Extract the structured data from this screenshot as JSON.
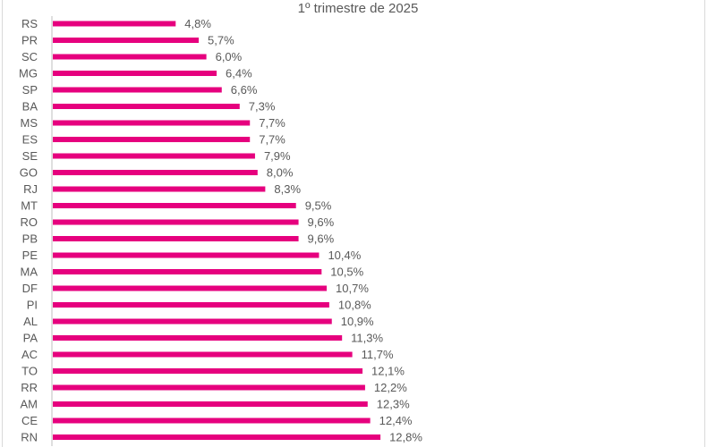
{
  "chart_data": {
    "type": "bar",
    "orientation": "horizontal",
    "title": "1º trimestre de 2025",
    "categories": [
      "RS",
      "PR",
      "SC",
      "MG",
      "SP",
      "BA",
      "MS",
      "ES",
      "SE",
      "GO",
      "RJ",
      "MT",
      "RO",
      "PB",
      "PE",
      "MA",
      "DF",
      "PI",
      "AL",
      "PA",
      "AC",
      "TO",
      "RR",
      "AM",
      "CE",
      "RN"
    ],
    "values": [
      4.8,
      5.7,
      6.0,
      6.4,
      6.6,
      7.3,
      7.7,
      7.7,
      7.9,
      8.0,
      8.3,
      9.5,
      9.6,
      9.6,
      10.4,
      10.5,
      10.7,
      10.8,
      10.9,
      11.3,
      11.7,
      12.1,
      12.2,
      12.3,
      12.4,
      12.8
    ],
    "labels": [
      "4,8%",
      "5,7%",
      "6,0%",
      "6,4%",
      "6,6%",
      "7,3%",
      "7,7%",
      "7,7%",
      "7,9%",
      "8,0%",
      "8,3%",
      "9,5%",
      "9,6%",
      "9,6%",
      "10,4%",
      "10,5%",
      "10,7%",
      "10,8%",
      "10,9%",
      "11,3%",
      "11,7%",
      "12,1%",
      "12,2%",
      "12,3%",
      "12,4%",
      "12,8%"
    ],
    "xlim": [
      0,
      16
    ],
    "grid": false,
    "bar_color": "#e6007e",
    "text_color": "#595959"
  }
}
